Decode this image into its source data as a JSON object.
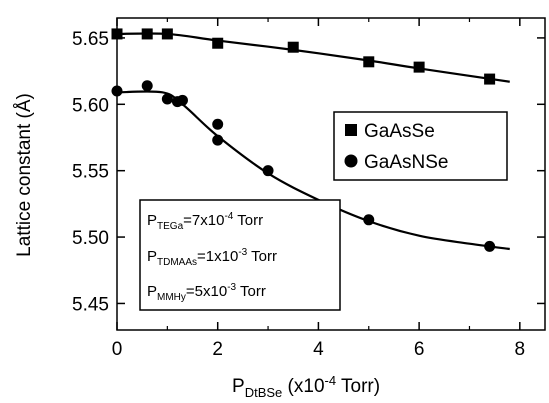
{
  "chart_data": {
    "type": "scatter",
    "xlabel": {
      "main": "P",
      "sub": "DtBSe",
      "rest": " (x10",
      "sup": "-4",
      "tail": " Torr)"
    },
    "ylabel": "Lattice constant (Å)",
    "xlim": [
      0,
      8.5
    ],
    "ylim": [
      5.43,
      5.665
    ],
    "x_ticks": [
      "0",
      "2",
      "4",
      "6",
      "8"
    ],
    "x_tick_values": [
      0,
      2,
      4,
      6,
      8
    ],
    "y_ticks": [
      "5.45",
      "5.50",
      "5.55",
      "5.60",
      "5.65"
    ],
    "y_tick_values": [
      5.45,
      5.5,
      5.55,
      5.6,
      5.65
    ],
    "grid": false,
    "legend_position": "right-middle",
    "series": [
      {
        "name": "GaAsSe",
        "marker": "square",
        "points": [
          [
            0,
            5.653
          ],
          [
            0.6,
            5.653
          ],
          [
            1.0,
            5.653
          ],
          [
            2.0,
            5.646
          ],
          [
            3.5,
            5.643
          ],
          [
            5.0,
            5.632
          ],
          [
            6.0,
            5.628
          ],
          [
            7.4,
            5.619
          ]
        ],
        "fit": [
          [
            0,
            5.653
          ],
          [
            1.0,
            5.653
          ],
          [
            2.0,
            5.648
          ],
          [
            3.5,
            5.641
          ],
          [
            5.0,
            5.633
          ],
          [
            6.0,
            5.627
          ],
          [
            7.8,
            5.617
          ]
        ]
      },
      {
        "name": "GaAsNSe",
        "marker": "circle",
        "points": [
          [
            0,
            5.61
          ],
          [
            0.6,
            5.614
          ],
          [
            1.0,
            5.604
          ],
          [
            1.2,
            5.602
          ],
          [
            1.3,
            5.603
          ],
          [
            2.0,
            5.585
          ],
          [
            2.0,
            5.573
          ],
          [
            3.0,
            5.55
          ],
          [
            5.0,
            5.513
          ],
          [
            7.4,
            5.493
          ]
        ],
        "fit": [
          [
            0,
            5.609
          ],
          [
            0.9,
            5.609
          ],
          [
            1.3,
            5.6
          ],
          [
            2.0,
            5.576
          ],
          [
            3.0,
            5.548
          ],
          [
            4.0,
            5.528
          ],
          [
            5.0,
            5.512
          ],
          [
            6.0,
            5.501
          ],
          [
            7.0,
            5.495
          ],
          [
            7.8,
            5.491
          ]
        ]
      }
    ],
    "annotations": [
      {
        "main": "P",
        "sub": "TEGa",
        "rest": "=7x10",
        "sup": "-4",
        "tail": " Torr"
      },
      {
        "main": "P",
        "sub": "TDMAAs",
        "rest": "=1x10",
        "sup": "-3",
        "tail": " Torr"
      },
      {
        "main": "P",
        "sub": "MMHy",
        "rest": "=5x10",
        "sup": "-3",
        "tail": " Torr"
      }
    ]
  }
}
